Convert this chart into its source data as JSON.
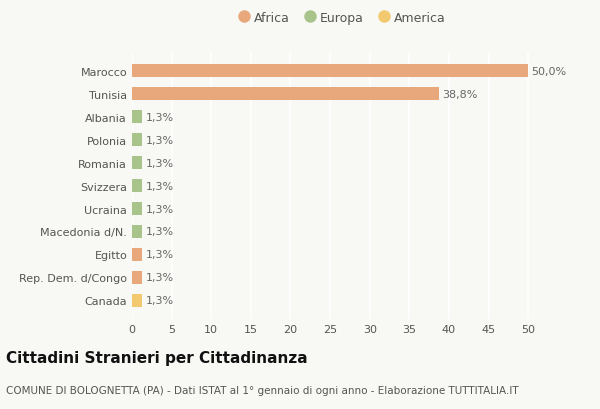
{
  "categories": [
    "Canada",
    "Rep. Dem. d/Congo",
    "Egitto",
    "Macedonia d/N.",
    "Ucraina",
    "Svizzera",
    "Romania",
    "Polonia",
    "Albania",
    "Tunisia",
    "Marocco"
  ],
  "values": [
    1.3,
    1.3,
    1.3,
    1.3,
    1.3,
    1.3,
    1.3,
    1.3,
    1.3,
    38.8,
    50.0
  ],
  "bar_colors": [
    "#f2c96e",
    "#e8a87c",
    "#e8a87c",
    "#a8c48a",
    "#a8c48a",
    "#a8c48a",
    "#a8c48a",
    "#a8c48a",
    "#a8c48a",
    "#e8a87c",
    "#e8a87c"
  ],
  "labels": [
    "1,3%",
    "1,3%",
    "1,3%",
    "1,3%",
    "1,3%",
    "1,3%",
    "1,3%",
    "1,3%",
    "1,3%",
    "38,8%",
    "50,0%"
  ],
  "legend": [
    {
      "label": "Africa",
      "color": "#e8a87c"
    },
    {
      "label": "Europa",
      "color": "#a8c48a"
    },
    {
      "label": "America",
      "color": "#f2c96e"
    }
  ],
  "xlim": [
    0,
    53
  ],
  "xticks": [
    0,
    5,
    10,
    15,
    20,
    25,
    30,
    35,
    40,
    45,
    50
  ],
  "title": "Cittadini Stranieri per Cittadinanza",
  "subtitle": "COMUNE DI BOLOGNETTA (PA) - Dati ISTAT al 1° gennaio di ogni anno - Elaborazione TUTTITALIA.IT",
  "background_color": "#f8f8f5",
  "bar_height": 0.55,
  "title_fontsize": 11,
  "subtitle_fontsize": 7.5,
  "tick_fontsize": 8,
  "label_fontsize": 8,
  "legend_fontsize": 9
}
